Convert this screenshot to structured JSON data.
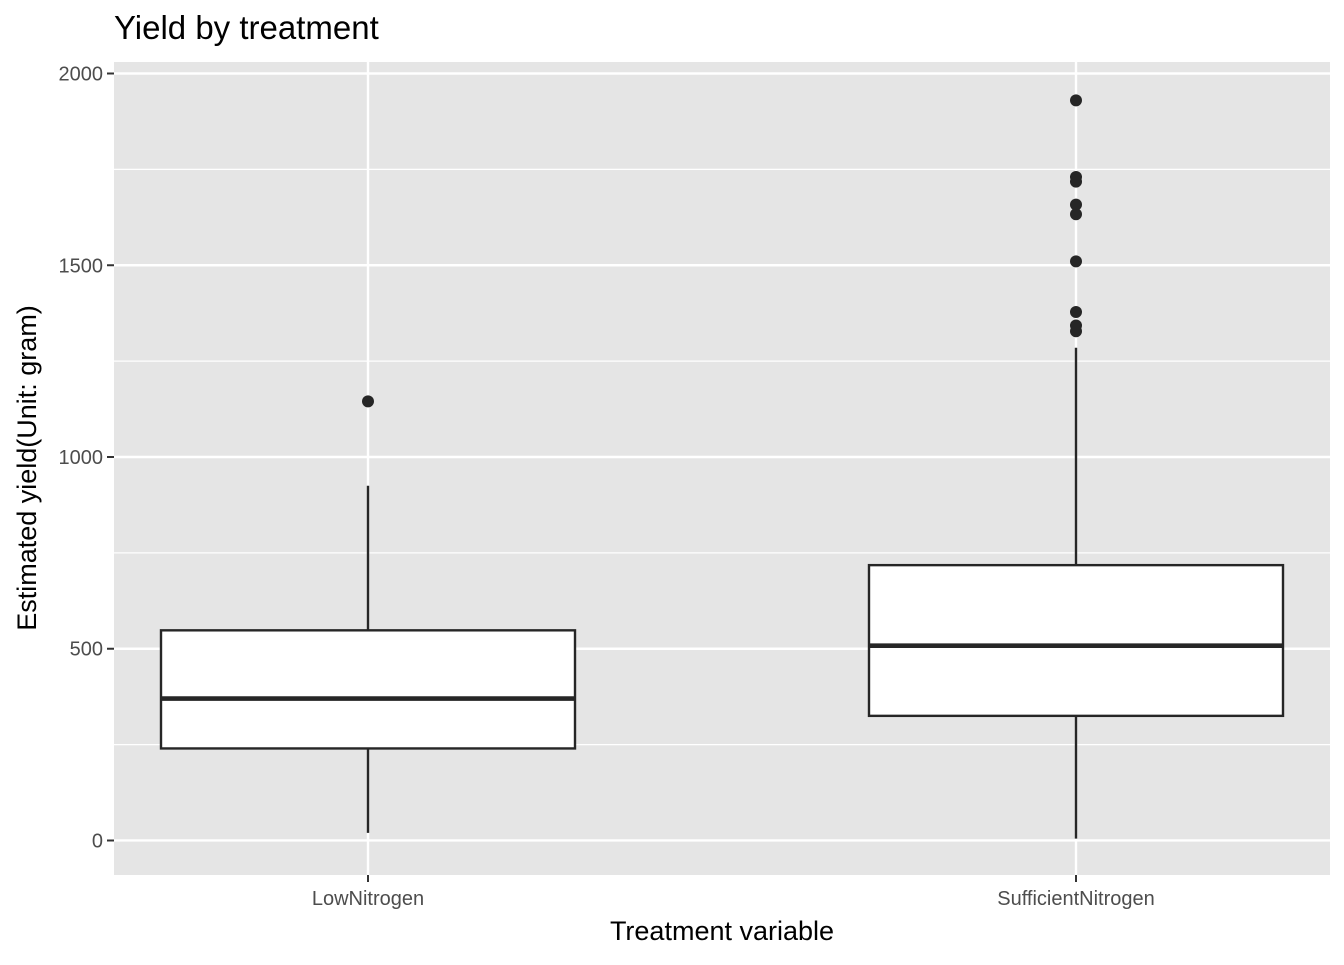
{
  "chart_data": {
    "type": "boxplot",
    "title": "Yield by treatment",
    "xlabel": "Treatment variable",
    "ylabel": "Estimated yield(Unit: gram)",
    "ylim": [
      -90,
      2030
    ],
    "y_ticks": [
      0,
      500,
      1000,
      1500,
      2000
    ],
    "y_minor_ticks": [
      250,
      750,
      1250,
      1750
    ],
    "grid": true,
    "panel_background": "#e5e5e5",
    "box_fill": "#ffffff",
    "line_color": "#262626",
    "categories": [
      "LowNitrogen",
      "SufficientNitrogen"
    ],
    "boxes": [
      {
        "category": "LowNitrogen",
        "whisker_low": 20,
        "q1": 240,
        "median": 370,
        "q3": 548,
        "whisker_high": 925,
        "outliers": [
          1145
        ]
      },
      {
        "category": "SufficientNitrogen",
        "whisker_low": 5,
        "q1": 325,
        "median": 508,
        "q3": 718,
        "whisker_high": 1285,
        "outliers": [
          1930,
          1730,
          1718,
          1658,
          1633,
          1510,
          1378,
          1343,
          1328
        ]
      }
    ]
  }
}
